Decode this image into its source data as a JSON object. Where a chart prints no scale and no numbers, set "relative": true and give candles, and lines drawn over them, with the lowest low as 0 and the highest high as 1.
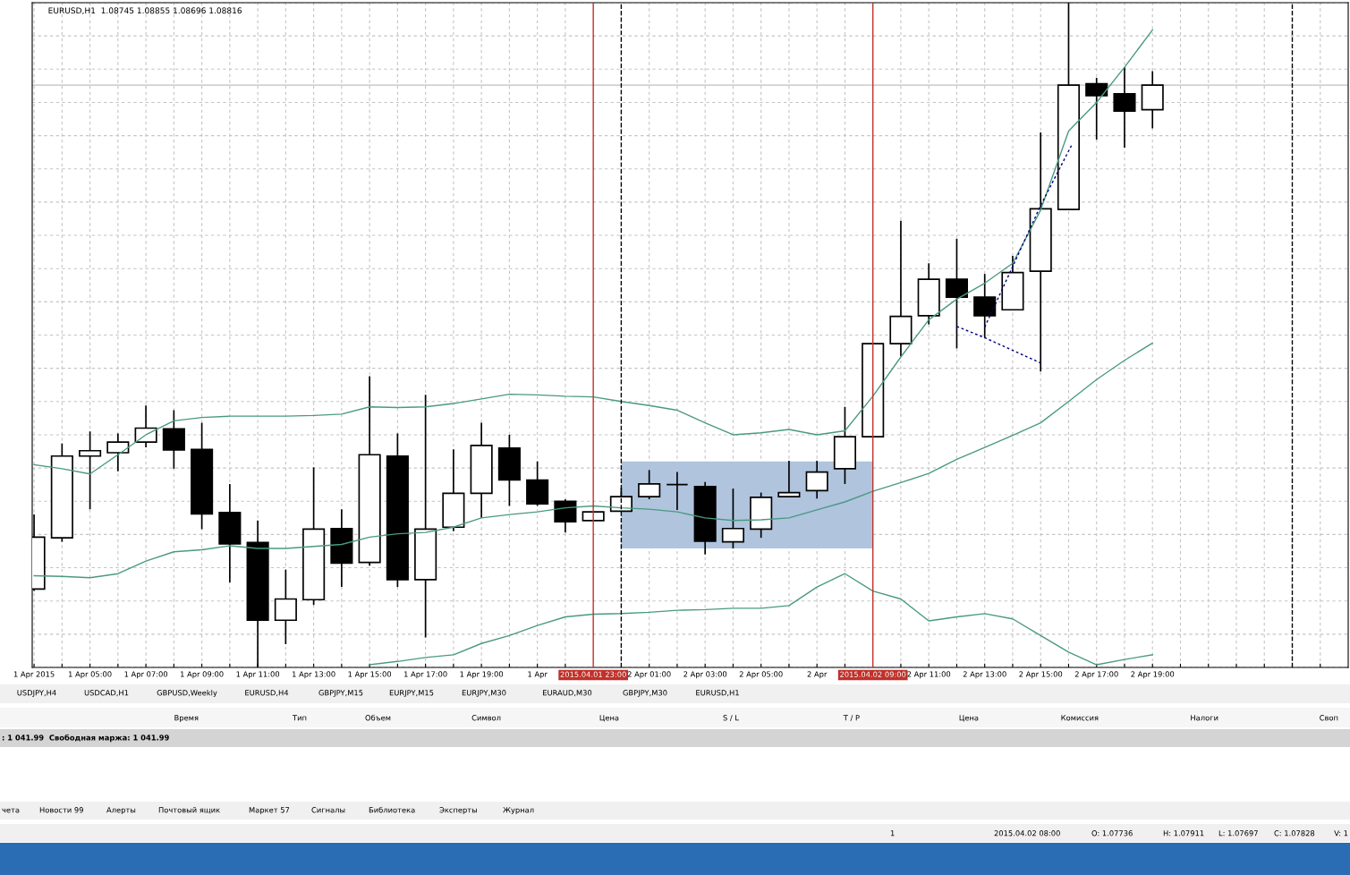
{
  "chart_data": {
    "type": "candlestick",
    "title": "EURUSD,H1  1.08745 1.08855 1.08696 1.08816",
    "relative": true,
    "x": [
      "2015-04-01T03:00",
      "2015-04-01T04:00",
      "2015-04-01T05:00",
      "2015-04-01T06:00",
      "2015-04-01T07:00",
      "2015-04-01T08:00",
      "2015-04-01T09:00",
      "2015-04-01T10:00",
      "2015-04-01T11:00",
      "2015-04-01T12:00",
      "2015-04-01T13:00",
      "2015-04-01T14:00",
      "2015-04-01T15:00",
      "2015-04-01T16:00",
      "2015-04-01T17:00",
      "2015-04-01T18:00",
      "2015-04-01T19:00",
      "2015-04-01T20:00",
      "2015-04-01T21:00",
      "2015-04-01T22:00",
      "2015-04-01T23:00",
      "2015-04-02T00:00",
      "2015-04-02T01:00",
      "2015-04-02T02:00",
      "2015-04-02T03:00",
      "2015-04-02T04:00",
      "2015-04-02T05:00",
      "2015-04-02T06:00",
      "2015-04-02T07:00",
      "2015-04-02T08:00",
      "2015-04-02T09:00",
      "2015-04-02T10:00",
      "2015-04-02T11:00",
      "2015-04-02T12:00",
      "2015-04-02T13:00",
      "2015-04-02T14:00",
      "2015-04-02T15:00",
      "2015-04-02T16:00",
      "2015-04-02T17:00",
      "2015-04-02T18:00",
      "2015-04-02T19:00"
    ],
    "ohlc": [
      [
        0.118,
        0.23,
        0.115,
        0.196
      ],
      [
        0.195,
        0.337,
        0.189,
        0.318
      ],
      [
        0.318,
        0.355,
        0.238,
        0.326
      ],
      [
        0.323,
        0.352,
        0.295,
        0.339
      ],
      [
        0.339,
        0.394,
        0.331,
        0.36
      ],
      [
        0.359,
        0.387,
        0.299,
        0.327
      ],
      [
        0.328,
        0.368,
        0.208,
        0.231
      ],
      [
        0.233,
        0.276,
        0.128,
        0.186
      ],
      [
        0.188,
        0.221,
        0,
        0.071
      ],
      [
        0.071,
        0.147,
        0.035,
        0.103
      ],
      [
        0.102,
        0.301,
        0.094,
        0.208
      ],
      [
        0.209,
        0.238,
        0.121,
        0.157
      ],
      [
        0.158,
        0.438,
        0.153,
        0.32
      ],
      [
        0.318,
        0.352,
        0.121,
        0.132
      ],
      [
        0.132,
        0.41,
        0.045,
        0.208
      ],
      [
        0.211,
        0.328,
        0.205,
        0.262
      ],
      [
        0.262,
        0.368,
        0.225,
        0.334
      ],
      [
        0.33,
        0.35,
        0.243,
        0.282
      ],
      [
        0.282,
        0.31,
        0.243,
        0.246
      ],
      [
        0.25,
        0.253,
        0.203,
        0.219
      ],
      [
        0.221,
        0.234,
        0.221,
        0.234
      ],
      [
        0.235,
        0.27,
        0.235,
        0.257
      ],
      [
        0.257,
        0.297,
        0.253,
        0.276
      ],
      [
        0.275,
        0.294,
        0.237,
        0.275
      ],
      [
        0.272,
        0.279,
        0.17,
        0.19
      ],
      [
        0.189,
        0.269,
        0.179,
        0.209
      ],
      [
        0.208,
        0.263,
        0.195,
        0.256
      ],
      [
        0.257,
        0.311,
        0.257,
        0.263
      ],
      [
        0.266,
        0.311,
        0.254,
        0.294
      ],
      [
        0.299,
        0.392,
        0.276,
        0.347
      ],
      [
        0.347,
        0.487,
        0.347,
        0.487
      ],
      [
        0.487,
        0.672,
        0.468,
        0.528
      ],
      [
        0.529,
        0.608,
        0.516,
        0.584
      ],
      [
        0.584,
        0.645,
        0.48,
        0.557
      ],
      [
        0.557,
        0.592,
        0.496,
        0.529
      ],
      [
        0.538,
        0.619,
        0.538,
        0.594
      ],
      [
        0.596,
        0.805,
        0.445,
        0.69
      ],
      [
        0.689,
        1,
        0.689,
        0.876
      ],
      [
        0.878,
        0.887,
        0.794,
        0.86
      ],
      [
        0.863,
        0.903,
        0.782,
        0.837
      ],
      [
        0.839,
        0.897,
        0.811,
        0.876
      ]
    ],
    "colors": [
      "#ffffff",
      "#ffffff",
      "#ffffff",
      "#ffffff",
      "#ffffff",
      "#000000",
      "#000000",
      "#000000",
      "#000000",
      "#ffffff",
      "#ffffff",
      "#000000",
      "#ffffff",
      "#000000",
      "#ffffff",
      "#ffffff",
      "#ffffff",
      "#000000",
      "#000000",
      "#000000",
      "#ffffff",
      "#ffffff",
      "#ffffff",
      "#000000",
      "#000000",
      "#ffffff",
      "#ffffff",
      "#ffffff",
      "#ffffff",
      "#ffffff",
      "#ffffff",
      "#ffffff",
      "#ffffff",
      "#000000",
      "#000000",
      "#ffffff",
      "#ffffff",
      "#ffffff",
      "#000000",
      "#000000",
      "#ffffff"
    ],
    "series": [
      {
        "type": "line",
        "color": "#b0c4de",
        "x": [
          "2015-04-02T00:00",
          "2015-04-02T09:00"
        ],
        "values": [
          null,
          null
        ],
        "lower": [
          0.179,
          0.179
        ],
        "upper": [
          0.31,
          0.31
        ]
      },
      {
        "type": "line",
        "color": "#4a9a80",
        "values": [
          0.305,
          0.299,
          0.291,
          0.32,
          0.35,
          0.371,
          0.376,
          0.378,
          0.378,
          0.378,
          0.379,
          0.381,
          0.392,
          0.391,
          0.392,
          0.397,
          0.404,
          0.411,
          0.41,
          0.408,
          0.407,
          0.4,
          0.394,
          0.387,
          0.368,
          0.35,
          0.353,
          0.358,
          0.35,
          0.356,
          0.408,
          0.467,
          0.523,
          0.554,
          0.578,
          0.608,
          0.688,
          0.807,
          0.85,
          0.903,
          0.959
        ]
      },
      {
        "type": "line",
        "color": "#4a9a80",
        "values": [
          0.138,
          0.137,
          0.135,
          0.141,
          0.16,
          0.174,
          0.177,
          0.183,
          0.179,
          0.179,
          0.182,
          0.185,
          0.196,
          0.201,
          0.203,
          0.211,
          0.225,
          0.23,
          0.234,
          0.24,
          0.243,
          0.24,
          0.238,
          0.234,
          0.225,
          0.221,
          0.222,
          0.225,
          0.237,
          0.249,
          0.265,
          0.278,
          0.292,
          0.313,
          0.331,
          0.349,
          0.368,
          0.4,
          0.433,
          0.462,
          0.488
        ]
      },
      {
        "type": "line",
        "color": "#4a9a80",
        "values": [
          null,
          null,
          null,
          null,
          null,
          null,
          null,
          null,
          null,
          null,
          null,
          null,
          0.004,
          0.009,
          0.015,
          0.019,
          0.036,
          0.048,
          0.063,
          0.076,
          0.08,
          0.081,
          0.083,
          0.086,
          0.087,
          0.089,
          0.089,
          0.093,
          0.121,
          0.141,
          0.115,
          0.103,
          0.07,
          0.076,
          0.081,
          0.073,
          0.048,
          0.023,
          0.004,
          0.012,
          0.019
        ]
      },
      {
        "type": "line",
        "color": "#000080",
        "line_style": "dashed",
        "x": [
          "2015-04-02T12:00",
          "2015-04-02T13:00",
          "2015-04-02T15:00"
        ],
        "values": [
          0.513,
          0.496,
          0.458
        ]
      },
      {
        "type": "line",
        "color": "#000080",
        "line_style": "dashed",
        "x": [
          "2015-04-02T13:00",
          "2015-04-02T14:00",
          "2015-04-02T15:00",
          "2015-04-02T16:06"
        ],
        "values": [
          0.512,
          0.603,
          0.695,
          0.785
        ]
      }
    ],
    "xlim": [
      "2015-04-01T02:56",
      "2015-04-03T02:00"
    ],
    "xticks": [
      {
        "value": "2015-04-01T03:00",
        "label": "1 Apr 2015"
      },
      {
        "value": "2015-04-01T04:00",
        "label": null
      },
      {
        "value": "2015-04-01T05:00",
        "label": "1 Apr 05:00"
      },
      {
        "value": "2015-04-01T06:00",
        "label": null
      },
      {
        "value": "2015-04-01T07:00",
        "label": "1 Apr 07:00"
      },
      {
        "value": "2015-04-01T08:00",
        "label": null
      },
      {
        "value": "2015-04-01T09:00",
        "label": "1 Apr 09:00"
      },
      {
        "value": "2015-04-01T10:00",
        "label": null
      },
      {
        "value": "2015-04-01T11:00",
        "label": "1 Apr 11:00"
      },
      {
        "value": "2015-04-01T12:00",
        "label": null
      },
      {
        "value": "2015-04-01T13:00",
        "label": "1 Apr 13:00"
      },
      {
        "value": "2015-04-01T14:00",
        "label": null
      },
      {
        "value": "2015-04-01T15:00",
        "label": "1 Apr 15:00"
      },
      {
        "value": "2015-04-01T16:00",
        "label": null
      },
      {
        "value": "2015-04-01T17:00",
        "label": "1 Apr 17:00"
      },
      {
        "value": "2015-04-01T18:00",
        "label": null
      },
      {
        "value": "2015-04-01T19:00",
        "label": "1 Apr 19:00"
      },
      {
        "value": "2015-04-01T20:00",
        "label": null
      },
      {
        "value": "2015-04-01T21:00",
        "label": "1 Apr"
      },
      {
        "value": "2015-04-01T22:00",
        "label": null
      },
      {
        "value": "2015-04-02T01:00",
        "label": "2 Apr 01:00"
      },
      {
        "value": "2015-04-02T02:00",
        "label": null
      },
      {
        "value": "2015-04-02T03:00",
        "label": "2 Apr 03:00"
      },
      {
        "value": "2015-04-02T04:00",
        "label": null
      },
      {
        "value": "2015-04-02T05:00",
        "label": "2 Apr 05:00"
      },
      {
        "value": "2015-04-02T06:00",
        "label": null
      },
      {
        "value": "2015-04-02T07:00",
        "label": "2 Apr"
      },
      {
        "value": "2015-04-02T08:00",
        "label": null
      },
      {
        "value": "2015-04-02T10:00",
        "label": null
      },
      {
        "value": "2015-04-02T11:00",
        "label": "2 Apr 11:00"
      },
      {
        "value": "2015-04-02T12:00",
        "label": null
      },
      {
        "value": "2015-04-02T13:00",
        "label": "2 Apr 13:00"
      },
      {
        "value": "2015-04-02T14:00",
        "label": null
      },
      {
        "value": "2015-04-02T15:00",
        "label": "2 Apr 15:00"
      },
      {
        "value": "2015-04-02T16:00",
        "label": null
      },
      {
        "value": "2015-04-02T17:00",
        "label": "2 Apr 17:00"
      },
      {
        "value": "2015-04-02T18:00",
        "label": null
      },
      {
        "value": "2015-04-02T19:00",
        "label": "2 Apr 19:00"
      },
      {
        "value": "2015-04-02T20:00",
        "label": null
      },
      {
        "value": "2015-04-02T21:00",
        "label": null
      },
      {
        "value": "2015-04-02T22:00",
        "label": null
      },
      {
        "value": "2015-04-02T23:00",
        "label": null
      },
      {
        "value": "2015-04-03T01:00",
        "label": null
      }
    ],
    "tick_labels": "x",
    "grid": true,
    "ref_lines": [
      {
        "axis": "x",
        "value": "2015-04-01T23:00",
        "label": "2015.04.01 23:00",
        "color": "#c0302a"
      },
      {
        "axis": "x",
        "value": "2015-04-02T00:00",
        "color": "#000000",
        "line_style": "dashed"
      },
      {
        "axis": "x",
        "value": "2015-04-02T09:00",
        "label": "2015.04.02 09:00",
        "color": "#c0302a"
      },
      {
        "axis": "x",
        "value": "2015-04-03T00:00",
        "color": "#000000",
        "line_style": "dashed"
      },
      {
        "axis": "y",
        "value": 0.876,
        "color": "#c0c0c0"
      }
    ],
    "annotations": [
      "USDJPY,H4",
      "USDCAD,H1",
      "GBPUSD,Weekly",
      "EURUSD,H4",
      "GBPJPY,M15",
      "EURJPY,M15",
      "EURJPY,M30",
      "EURAUD,M30",
      "GBPJPY,M30",
      "EURUSD,H1",
      "Время",
      "Тип",
      "Объем",
      "Символ",
      "Цена",
      "S / L",
      "T / P",
      "Цена",
      "Комиссия",
      "Налоги",
      "Своп",
      ": 1 041.99  Свободная маржа: 1 041.99",
      "чета",
      "Новости 99",
      "Алерты",
      "Почтовый ящик",
      "Маркет 57",
      "Сигналы",
      "Библиотека",
      "Эксперты",
      "Журнал",
      "1",
      "2015.04.02 08:00",
      "O: 1.07736",
      "H: 1.07911",
      "L: 1.07697",
      "C: 1.07828",
      "V: 1"
    ]
  }
}
